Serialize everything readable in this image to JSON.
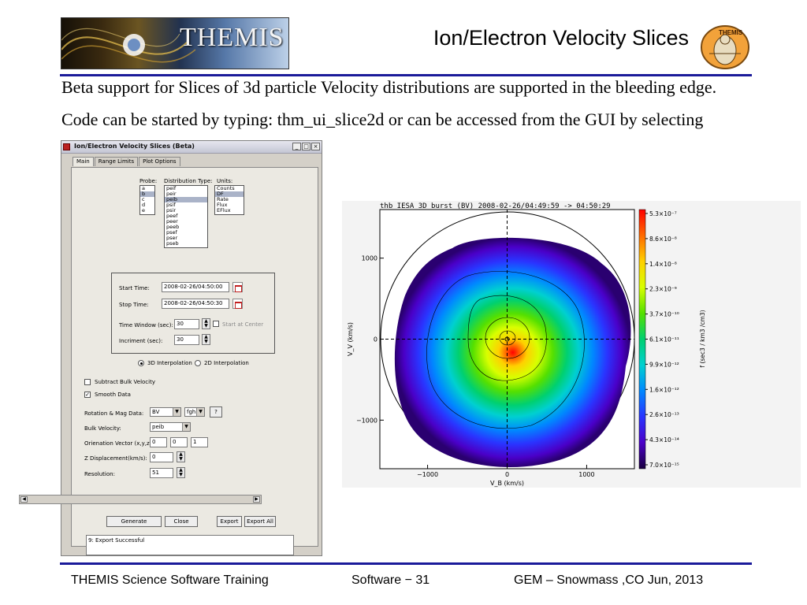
{
  "header": {
    "logo_text": "THEMIS",
    "slide_title": "Ion/Electron Velocity Slices",
    "badge_text": "THEMIS"
  },
  "body": {
    "line1": "Beta support for Slices of 3d particle Velocity distributions are supported in the bleeding edge.",
    "line2": "Code can be started by typing: thm_ui_slice2d or can be accessed from the GUI by selecting"
  },
  "window": {
    "title": "Ion/Electron Velocity Slices (Beta)",
    "controls": [
      "_",
      "□",
      "×"
    ],
    "tabs": [
      "Main",
      "Range Limits",
      "Plot Options"
    ],
    "probe_label": "Probe:",
    "probes": [
      "a",
      "b",
      "c",
      "d",
      "e"
    ],
    "probe_selected": "b",
    "dist_label": "Distribution Type:",
    "distributions": [
      "peif",
      "peir",
      "peib",
      "psif",
      "psir",
      "peef",
      "peer",
      "peeb",
      "psef",
      "pser",
      "pseb"
    ],
    "dist_selected": "peib",
    "units_label": "Units:",
    "units": [
      "Counts",
      "DF",
      "Rate",
      "Flux",
      "EFlux"
    ],
    "unit_selected": "DF",
    "start_time_label": "Start Time:",
    "start_time": "2008-02-26/04:50:00",
    "stop_time_label": "Stop Time:",
    "stop_time": "2008-02-26/04:50:30",
    "time_window_label": "Time Window (sec):",
    "time_window": "30",
    "start_at_center": "Start at Center",
    "increment_label": "Incriment (sec):",
    "increment": "30",
    "interp_3d": "3D Interpolation",
    "interp_2d": "2D Interpolation",
    "subtract_bulk": "Subtract Bulk Velocity",
    "smooth_data": "Smooth Data",
    "check_mark": "✓",
    "rotation_label": "Rotation & Mag Data:",
    "rotation": "BV",
    "mag_data": "fgh",
    "help_btn": "?",
    "bulk_label": "Bulk Velocity:",
    "bulk": "peib",
    "orient_label": "Orienation Vector (x,y,z):",
    "orient": [
      "0",
      "0",
      "1"
    ],
    "zdisp_label": "Z Displacement(km/s):",
    "zdisp": "0",
    "resolution_label": "Resolution:",
    "resolution": "51",
    "generate": "Generate",
    "close": "Close",
    "export": "Export",
    "export_all": "Export All",
    "status": "9: Export Successful"
  },
  "chart_data": {
    "type": "heatmap",
    "title": "thb  IESA 3D burst (BV)  2008-02-26/04:49:59 -> 04:50:29",
    "xlabel": "V_B (km/s)",
    "ylabel": "V_V (km/s)",
    "xticks": [
      "−1000",
      "0",
      "1000"
    ],
    "yticks": [
      "1000",
      "0",
      "−1000"
    ],
    "xlim": [
      -1600,
      1600
    ],
    "ylim": [
      -1600,
      1600
    ],
    "colorbar_label": "f (sec3 / km3 /cm3)",
    "colorbar_ticks": [
      "5.3×10⁻⁷",
      "8.6×10⁻⁸",
      "1.4×10⁻⁸",
      "2.3×10⁻⁹",
      "3.7×10⁻¹⁰",
      "6.1×10⁻¹¹",
      "9.9×10⁻¹²",
      "1.6×10⁻¹²",
      "2.6×10⁻¹³",
      "4.3×10⁻¹⁴",
      "7.0×10⁻¹⁵"
    ],
    "colorscale": [
      "#ff0000",
      "#ff6a00",
      "#ffd000",
      "#d8ff00",
      "#55e000",
      "#00d070",
      "#00d0d0",
      "#0088ff",
      "#2a34ff",
      "#4a00c8",
      "#2a0070"
    ],
    "peak": [
      0,
      0
    ]
  },
  "footer": {
    "left": "THEMIS Science Software Training",
    "center": "Software − 31",
    "right": "GEM – Snowmass ,CO  Jun, 2013"
  },
  "colors": {
    "rule": "#1a1a9a",
    "window_bg": "#d4d0c8"
  }
}
